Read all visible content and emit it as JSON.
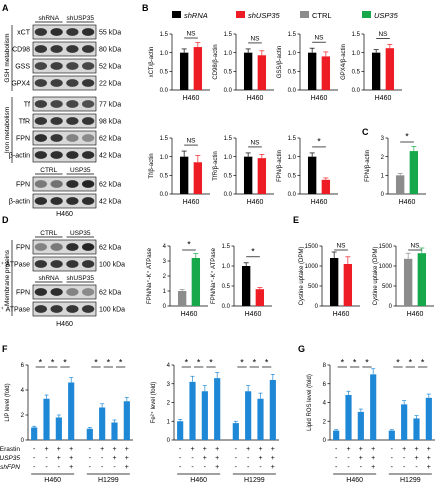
{
  "panel_labels": {
    "A": "A",
    "B": "B",
    "C": "C",
    "D": "D",
    "E": "E",
    "F": "F",
    "G": "G"
  },
  "legend": [
    {
      "label": "shRNA",
      "color": "#000000"
    },
    {
      "label": "shUSP35",
      "color": "#ee1c24"
    },
    {
      "label": "CTRL",
      "color": "#8c8c8c"
    },
    {
      "label": "USP35",
      "color": "#17a84b"
    }
  ],
  "colors": {
    "black": "#000000",
    "red": "#ee1c24",
    "gray": "#8c8c8c",
    "green": "#17a84b",
    "blue": "#1e88d6"
  },
  "blot_A": {
    "header": [
      "shRNA",
      "shUSP35"
    ],
    "rows_gsh": [
      {
        "label": "xCT",
        "kda": "55 kDa"
      },
      {
        "label": "CD98",
        "kda": "80 kDa"
      },
      {
        "label": "GSS",
        "kda": "52 kDa"
      },
      {
        "label": "GPX4",
        "kda": "22 kDa"
      }
    ],
    "rows_iron": [
      {
        "label": "Tf",
        "kda": "77 kDa"
      },
      {
        "label": "TfR",
        "kda": "98 kDa"
      },
      {
        "label": "FPN",
        "kda": "62 kDa"
      },
      {
        "label": "β-actin",
        "kda": "42 kDa"
      }
    ],
    "group_gsh": "GSH metabolism",
    "group_iron": "Iron metabolism",
    "header2": [
      "CTRL",
      "USP35"
    ],
    "rows2": [
      {
        "label": "FPN",
        "kda": "62 kDa"
      },
      {
        "label": "β-actin",
        "kda": "42 kDa"
      }
    ],
    "cell": "H460"
  },
  "blot_D": {
    "header1": [
      "CTRL",
      "USP35"
    ],
    "header2": [
      "shRNA",
      "shUSP35"
    ],
    "rows1": [
      {
        "label": "FPN",
        "kda": "62 kDa"
      },
      {
        "label": "Na⁺-K⁺ ATPase",
        "kda": "100 kDa"
      }
    ],
    "rows2": [
      {
        "label": "FPN",
        "kda": "62 kDa"
      },
      {
        "label": "Na⁺-K⁺ ATPase",
        "kda": "100 kDa"
      }
    ],
    "group": "Membrane proteins",
    "cell": "H460"
  },
  "chart_data": [
    {
      "type": "bar",
      "panel": "B",
      "ylabel": "xCT/β-actin",
      "xlabel": "H460",
      "ylim": [
        0,
        1.5
      ],
      "yticks": [
        0,
        0.5,
        1.0,
        1.5
      ],
      "series": [
        {
          "name": "shRNA",
          "values": [
            1.0
          ],
          "err": [
            0.1
          ]
        },
        {
          "name": "shUSP35",
          "values": [
            1.15
          ],
          "err": [
            0.12
          ]
        }
      ],
      "sig": "NS"
    },
    {
      "type": "bar",
      "panel": "B",
      "ylabel": "CD98/β-actin",
      "xlabel": "H460",
      "ylim": [
        0,
        1.5
      ],
      "yticks": [
        0,
        0.5,
        1.0,
        1.5
      ],
      "series": [
        {
          "name": "shRNA",
          "values": [
            1.0
          ],
          "err": [
            0.1
          ]
        },
        {
          "name": "shUSP35",
          "values": [
            0.93
          ],
          "err": [
            0.12
          ]
        }
      ],
      "sig": "NS"
    },
    {
      "type": "bar",
      "panel": "B",
      "ylabel": "GSS/β-actin",
      "xlabel": "H460",
      "ylim": [
        0,
        1.5
      ],
      "yticks": [
        0,
        0.5,
        1.0,
        1.5
      ],
      "series": [
        {
          "name": "shRNA",
          "values": [
            1.0
          ],
          "err": [
            0.12
          ]
        },
        {
          "name": "shUSP35",
          "values": [
            0.9
          ],
          "err": [
            0.12
          ]
        }
      ],
      "sig": "NS"
    },
    {
      "type": "bar",
      "panel": "B",
      "ylabel": "GPX4/β-actin",
      "xlabel": "H460",
      "ylim": [
        0,
        1.5
      ],
      "yticks": [
        0,
        0.5,
        1.0,
        1.5
      ],
      "series": [
        {
          "name": "shRNA",
          "values": [
            1.0
          ],
          "err": [
            0.08
          ]
        },
        {
          "name": "shUSP35",
          "values": [
            1.12
          ],
          "err": [
            0.1
          ]
        }
      ],
      "sig": "NS"
    },
    {
      "type": "bar",
      "panel": "B",
      "ylabel": "Tf/β-actin",
      "xlabel": "H460",
      "ylim": [
        0,
        1.5
      ],
      "yticks": [
        0,
        0.5,
        1.0,
        1.5
      ],
      "series": [
        {
          "name": "shRNA",
          "values": [
            1.0
          ],
          "err": [
            0.15
          ]
        },
        {
          "name": "shUSP35",
          "values": [
            0.85
          ],
          "err": [
            0.18
          ]
        }
      ],
      "sig": "NS"
    },
    {
      "type": "bar",
      "panel": "B",
      "ylabel": "TfR/β-actin",
      "xlabel": "H460",
      "ylim": [
        0,
        1.5
      ],
      "yticks": [
        0,
        0.5,
        1.0,
        1.5
      ],
      "series": [
        {
          "name": "shRNA",
          "values": [
            1.0
          ],
          "err": [
            0.1
          ]
        },
        {
          "name": "shUSP35",
          "values": [
            0.96
          ],
          "err": [
            0.1
          ]
        }
      ],
      "sig": "NS"
    },
    {
      "type": "bar",
      "panel": "B",
      "ylabel": "FPN/β-actin",
      "xlabel": "H460",
      "ylim": [
        0,
        1.5
      ],
      "yticks": [
        0,
        0.5,
        1.0,
        1.5
      ],
      "series": [
        {
          "name": "shRNA",
          "values": [
            1.0
          ],
          "err": [
            0.1
          ]
        },
        {
          "name": "shUSP35",
          "values": [
            0.38
          ],
          "err": [
            0.05
          ]
        }
      ],
      "sig": "*"
    },
    {
      "type": "bar",
      "panel": "C",
      "ylabel": "FPN/β-actin",
      "xlabel": "H460",
      "ylim": [
        0,
        3
      ],
      "yticks": [
        0,
        1,
        2,
        3
      ],
      "series": [
        {
          "name": "CTRL",
          "values": [
            1.0
          ],
          "err": [
            0.1
          ]
        },
        {
          "name": "USP35",
          "values": [
            2.3
          ],
          "err": [
            0.25
          ]
        }
      ],
      "sig": "*"
    },
    {
      "type": "bar",
      "panel": "D",
      "ylabel": "FPN/Na⁺-K⁺ ATPase",
      "xlabel": "H460",
      "ylim": [
        0,
        4
      ],
      "yticks": [
        0,
        1,
        2,
        3,
        4
      ],
      "series": [
        {
          "name": "CTRL",
          "values": [
            1.0
          ],
          "err": [
            0.1
          ]
        },
        {
          "name": "USP35",
          "values": [
            3.2
          ],
          "err": [
            0.3
          ]
        }
      ],
      "sig": "*"
    },
    {
      "type": "bar",
      "panel": "D",
      "ylabel": "FPN/Na⁺-K⁺ ATPase",
      "xlabel": "H460",
      "ylim": [
        0,
        1.5
      ],
      "yticks": [
        0,
        0.5,
        1.0,
        1.5
      ],
      "series": [
        {
          "name": "shRNA",
          "values": [
            1.0
          ],
          "err": [
            0.08
          ]
        },
        {
          "name": "shUSP35",
          "values": [
            0.42
          ],
          "err": [
            0.04
          ]
        }
      ],
      "sig": "*"
    },
    {
      "type": "bar",
      "panel": "E",
      "ylabel": "Cystine uptake (DPM)",
      "xlabel": "H460",
      "ylim": [
        0,
        1500
      ],
      "yticks": [
        0,
        500,
        1000,
        1500
      ],
      "series": [
        {
          "name": "shRNA",
          "values": [
            1200
          ],
          "err": [
            150
          ]
        },
        {
          "name": "shUSP35",
          "values": [
            1050
          ],
          "err": [
            180
          ]
        }
      ],
      "sig": "NS"
    },
    {
      "type": "bar",
      "panel": "E",
      "ylabel": "Cystine uptake (DPM)",
      "xlabel": "H460",
      "ylim": [
        0,
        1500
      ],
      "yticks": [
        0,
        500,
        1000,
        1500
      ],
      "series": [
        {
          "name": "CTRL",
          "values": [
            1180
          ],
          "err": [
            140
          ]
        },
        {
          "name": "USP35",
          "values": [
            1320
          ],
          "err": [
            130
          ]
        }
      ],
      "sig": "NS"
    },
    {
      "type": "bar",
      "panel": "F",
      "ylabel": "LIP level (fold)",
      "ylim": [
        0,
        6
      ],
      "yticks": [
        0,
        2,
        4,
        6
      ],
      "groups": [
        "H460",
        "H1299"
      ],
      "values": [
        1.0,
        3.3,
        1.8,
        4.6,
        0.9,
        2.6,
        1.4,
        3.1
      ],
      "err": [
        0.1,
        0.3,
        0.2,
        0.4,
        0.1,
        0.3,
        0.2,
        0.3
      ],
      "sig": [
        "*",
        "*",
        "*",
        "*",
        "*",
        "*"
      ]
    },
    {
      "type": "bar",
      "panel": "F",
      "ylabel": "Fe²⁺ level (fold)",
      "ylim": [
        0,
        4
      ],
      "yticks": [
        0,
        1,
        2,
        3,
        4
      ],
      "groups": [
        "H460",
        "H1299"
      ],
      "values": [
        1.0,
        3.1,
        2.6,
        3.3,
        0.9,
        2.6,
        2.2,
        3.2
      ],
      "err": [
        0.1,
        0.3,
        0.3,
        0.3,
        0.1,
        0.3,
        0.3,
        0.3
      ],
      "sig": [
        "*",
        "*",
        "*",
        "*",
        "*",
        "*"
      ]
    },
    {
      "type": "bar",
      "panel": "G",
      "ylabel": "Lipid ROS level (fold)",
      "ylim": [
        0,
        8
      ],
      "yticks": [
        0,
        2,
        4,
        6,
        8
      ],
      "groups": [
        "H460",
        "H1299"
      ],
      "values": [
        1.0,
        4.8,
        3.0,
        7.0,
        1.0,
        3.8,
        2.3,
        4.5
      ],
      "err": [
        0.1,
        0.4,
        0.3,
        0.6,
        0.1,
        0.4,
        0.3,
        0.4
      ],
      "sig": [
        "*",
        "*",
        "*",
        "*",
        "*",
        "*"
      ]
    }
  ],
  "treatment_rows": {
    "labels": [
      "Erastin",
      "USP35",
      "shFPN"
    ],
    "marks": [
      [
        "-",
        "+",
        "+",
        "+",
        "-",
        "+",
        "+",
        "+"
      ],
      [
        "-",
        "-",
        "+",
        "+",
        "-",
        "-",
        "+",
        "+"
      ],
      [
        "-",
        "-",
        "-",
        "+",
        "-",
        "-",
        "-",
        "+"
      ]
    ]
  }
}
